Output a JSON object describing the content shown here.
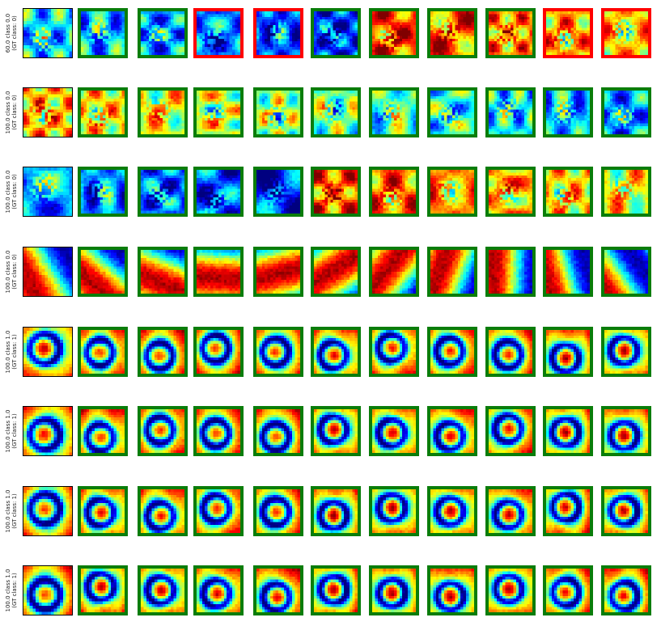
{
  "figure": {
    "rows": [
      {
        "label_line1": "60.0 class 0.0",
        "label_line2": "(GT class: 0)",
        "pattern": "blob",
        "borders": [
          "match",
          "match",
          "mismatch",
          "mismatch",
          "match",
          "match",
          "match",
          "match",
          "mismatch",
          "mismatch"
        ]
      },
      {
        "label_line1": "100.0 class 0.0",
        "label_line2": "(GT class: 0)",
        "pattern": "blob",
        "borders": [
          "match",
          "match",
          "match",
          "match",
          "match",
          "match",
          "match",
          "match",
          "match",
          "match"
        ]
      },
      {
        "label_line1": "100.0 class 0.0",
        "label_line2": "(GT class: 0)",
        "pattern": "blob",
        "borders": [
          "match",
          "match",
          "match",
          "match",
          "match",
          "match",
          "match",
          "match",
          "match",
          "match"
        ]
      },
      {
        "label_line1": "100.0 class 0.0",
        "label_line2": "(GT class: 0)",
        "pattern": "gradient",
        "borders": [
          "match",
          "match",
          "match",
          "match",
          "match",
          "match",
          "match",
          "match",
          "match",
          "match"
        ]
      },
      {
        "label_line1": "100.0 class 1.0",
        "label_line2": "(GT class: 1)",
        "pattern": "ring",
        "borders": [
          "match",
          "match",
          "match",
          "match",
          "match",
          "match",
          "match",
          "match",
          "match",
          "match"
        ]
      },
      {
        "label_line1": "100.0 class 1.0",
        "label_line2": "(GT class: 1)",
        "pattern": "ring",
        "borders": [
          "match",
          "match",
          "match",
          "match",
          "match",
          "match",
          "match",
          "match",
          "match",
          "match"
        ]
      },
      {
        "label_line1": "100.0 class 1.0",
        "label_line2": "(GT class: 1)",
        "pattern": "ring",
        "borders": [
          "match",
          "match",
          "match",
          "match",
          "match",
          "match",
          "match",
          "match",
          "match",
          "match"
        ]
      },
      {
        "label_line1": "100.0 class 1.0",
        "label_line2": "(GT class: 1)",
        "pattern": "ring",
        "borders": [
          "match",
          "match",
          "match",
          "match",
          "match",
          "match",
          "match",
          "match",
          "match",
          "match"
        ]
      }
    ],
    "colors": {
      "match": "#0a7d0a",
      "mismatch": "#ff0000",
      "query": "#000000"
    },
    "colormap": "jet"
  }
}
